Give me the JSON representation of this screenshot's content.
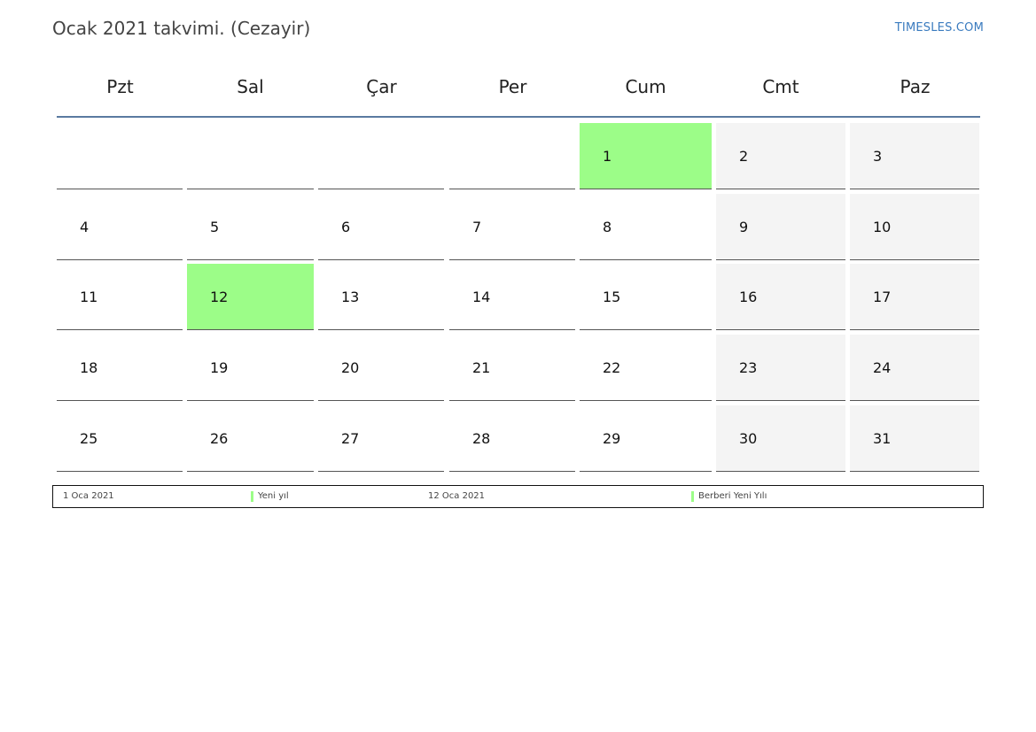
{
  "header": {
    "title": "Ocak 2021 takvimi. (Cezayir)",
    "brand": "TIMESLES.COM"
  },
  "colors": {
    "holiday": "#9cfd88",
    "weekend": "#f4f4f4",
    "header_rule": "#5a7aa0",
    "brand": "#3a7bbf"
  },
  "calendar": {
    "weekdays": [
      "Pzt",
      "Sal",
      "Çar",
      "Per",
      "Cum",
      "Cmt",
      "Paz"
    ],
    "weeks": [
      [
        "",
        "",
        "",
        "",
        "1",
        "2",
        "3"
      ],
      [
        "4",
        "5",
        "6",
        "7",
        "8",
        "9",
        "10"
      ],
      [
        "11",
        "12",
        "13",
        "14",
        "15",
        "16",
        "17"
      ],
      [
        "18",
        "19",
        "20",
        "21",
        "22",
        "23",
        "24"
      ],
      [
        "25",
        "26",
        "27",
        "28",
        "29",
        "30",
        "31"
      ]
    ],
    "holiday_days": [
      "1",
      "12"
    ]
  },
  "legend": {
    "items": [
      {
        "date": "1 Oca 2021",
        "name": "Yeni yıl"
      },
      {
        "date": "12 Oca 2021",
        "name": "Berberi Yeni Yılı"
      }
    ]
  }
}
